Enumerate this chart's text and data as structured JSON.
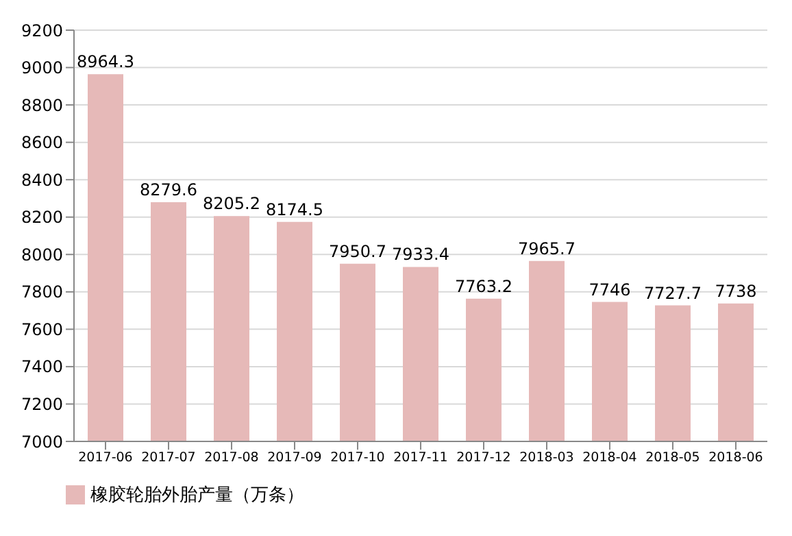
{
  "chart_data": {
    "type": "bar",
    "categories": [
      "2017-06",
      "2017-07",
      "2017-08",
      "2017-09",
      "2017-10",
      "2017-11",
      "2017-12",
      "2018-03",
      "2018-04",
      "2018-05",
      "2018-06"
    ],
    "series": [
      {
        "name": "橡胶轮胎外胎产量（万条）",
        "color": "#e6b9b8",
        "values": [
          8964.3,
          8279.6,
          8205.2,
          8174.5,
          7950.7,
          7933.4,
          7763.2,
          7965.7,
          7746,
          7727.7,
          7738
        ]
      }
    ],
    "ylim": [
      7000,
      9200
    ],
    "yticks": [
      7000,
      7200,
      7400,
      7600,
      7800,
      8000,
      8200,
      8400,
      8600,
      8800,
      9000,
      9200
    ],
    "grid": "y",
    "legend": "bottom left",
    "data_labels": true
  }
}
